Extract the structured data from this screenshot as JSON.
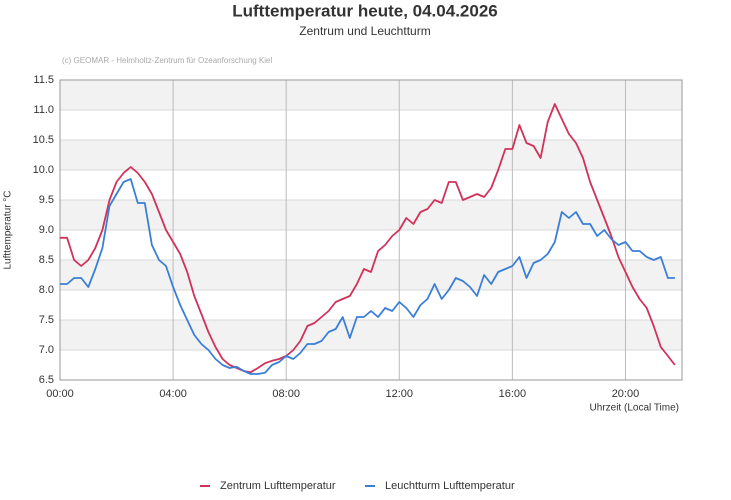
{
  "chart_data": {
    "type": "line",
    "title": "Lufttemperatur heute, 04.04.2026",
    "subtitle": "Zentrum und Leuchtturm",
    "annotation": "(c) GEOMAR - Helmholtz-Zentrum für Ozeanforschung Kiel",
    "x_label": "Uhrzeit (Local Time)",
    "y_label": "Lufttemperatur °C",
    "x": [
      0,
      0.25,
      0.5,
      0.75,
      1,
      1.25,
      1.5,
      1.75,
      2,
      2.25,
      2.5,
      2.75,
      3,
      3.25,
      3.5,
      3.75,
      4,
      4.25,
      4.5,
      4.75,
      5,
      5.25,
      5.5,
      5.75,
      6,
      6.25,
      6.5,
      6.75,
      7,
      7.25,
      7.5,
      7.75,
      8,
      8.25,
      8.5,
      8.75,
      9,
      9.25,
      9.5,
      9.75,
      10,
      10.25,
      10.5,
      10.75,
      11,
      11.25,
      11.5,
      11.75,
      12,
      12.25,
      12.5,
      12.75,
      13,
      13.25,
      13.5,
      13.75,
      14,
      14.25,
      14.5,
      14.75,
      15,
      15.25,
      15.5,
      15.75,
      16,
      16.25,
      16.5,
      16.75,
      17,
      17.25,
      17.5,
      17.75,
      18,
      18.25,
      18.5,
      18.75,
      19,
      19.25,
      19.5,
      19.75,
      20,
      20.25,
      20.5,
      20.75,
      21,
      21.25,
      21.5,
      21.75
    ],
    "series": [
      {
        "name": "Zentrum Lufttemperatur",
        "color": "#d0325a",
        "values": [
          8.87,
          8.87,
          8.5,
          8.4,
          8.5,
          8.7,
          9.0,
          9.5,
          9.8,
          9.95,
          10.05,
          9.95,
          9.8,
          9.6,
          9.3,
          9.0,
          8.8,
          8.6,
          8.3,
          7.9,
          7.6,
          7.3,
          7.05,
          6.85,
          6.75,
          6.7,
          6.65,
          6.63,
          6.7,
          6.78,
          6.82,
          6.85,
          6.9,
          7.0,
          7.15,
          7.4,
          7.45,
          7.55,
          7.65,
          7.8,
          7.85,
          7.9,
          8.1,
          8.35,
          8.3,
          8.65,
          8.75,
          8.9,
          9.0,
          9.2,
          9.1,
          9.3,
          9.35,
          9.5,
          9.45,
          9.8,
          9.8,
          9.5,
          9.55,
          9.6,
          9.55,
          9.7,
          10.0,
          10.35,
          10.35,
          10.75,
          10.45,
          10.4,
          10.2,
          10.8,
          11.1,
          10.85,
          10.6,
          10.45,
          10.2,
          9.8,
          9.5,
          9.2,
          8.9,
          8.55,
          8.3,
          8.05,
          7.85,
          7.7,
          7.4,
          7.05,
          6.9,
          6.75
        ]
      },
      {
        "name": "Leuchtturm Lufttemperatur",
        "color": "#3a7fd5",
        "values": [
          8.1,
          8.1,
          8.2,
          8.2,
          8.05,
          8.35,
          8.7,
          9.4,
          9.6,
          9.8,
          9.85,
          9.45,
          9.45,
          8.75,
          8.5,
          8.4,
          8.05,
          7.75,
          7.5,
          7.25,
          7.1,
          7.0,
          6.85,
          6.75,
          6.7,
          6.72,
          6.65,
          6.6,
          6.6,
          6.62,
          6.75,
          6.8,
          6.9,
          6.85,
          6.95,
          7.1,
          7.1,
          7.15,
          7.3,
          7.35,
          7.55,
          7.2,
          7.55,
          7.55,
          7.65,
          7.55,
          7.7,
          7.65,
          7.8,
          7.7,
          7.55,
          7.75,
          7.85,
          8.1,
          7.85,
          8.0,
          8.2,
          8.15,
          8.05,
          7.9,
          8.25,
          8.1,
          8.3,
          8.35,
          8.4,
          8.55,
          8.2,
          8.45,
          8.5,
          8.6,
          8.8,
          9.3,
          9.2,
          9.3,
          9.1,
          9.1,
          8.9,
          9.0,
          8.85,
          8.75,
          8.8,
          8.65,
          8.65,
          8.55,
          8.5,
          8.55,
          8.2,
          8.2
        ]
      }
    ],
    "xlim": [
      0,
      22
    ],
    "xticks": [
      {
        "value": 0,
        "label": "00:00"
      },
      {
        "value": 4,
        "label": "04:00"
      },
      {
        "value": 8,
        "label": "08:00"
      },
      {
        "value": 12,
        "label": "12:00"
      },
      {
        "value": 16,
        "label": "16:00"
      },
      {
        "value": 20,
        "label": "20:00"
      }
    ],
    "ylim": [
      6.5,
      11.5
    ],
    "yticks": [
      6.5,
      {
        "value": 7,
        "label": "7.0"
      },
      7.5,
      {
        "value": 8,
        "label": "8.0"
      },
      8.5,
      {
        "value": 9,
        "label": "9.0"
      },
      9.5,
      {
        "value": 10,
        "label": "10.0"
      },
      10.5,
      {
        "value": 11,
        "label": "11.0"
      },
      11.5
    ],
    "grid": true,
    "legend": "bottom"
  }
}
